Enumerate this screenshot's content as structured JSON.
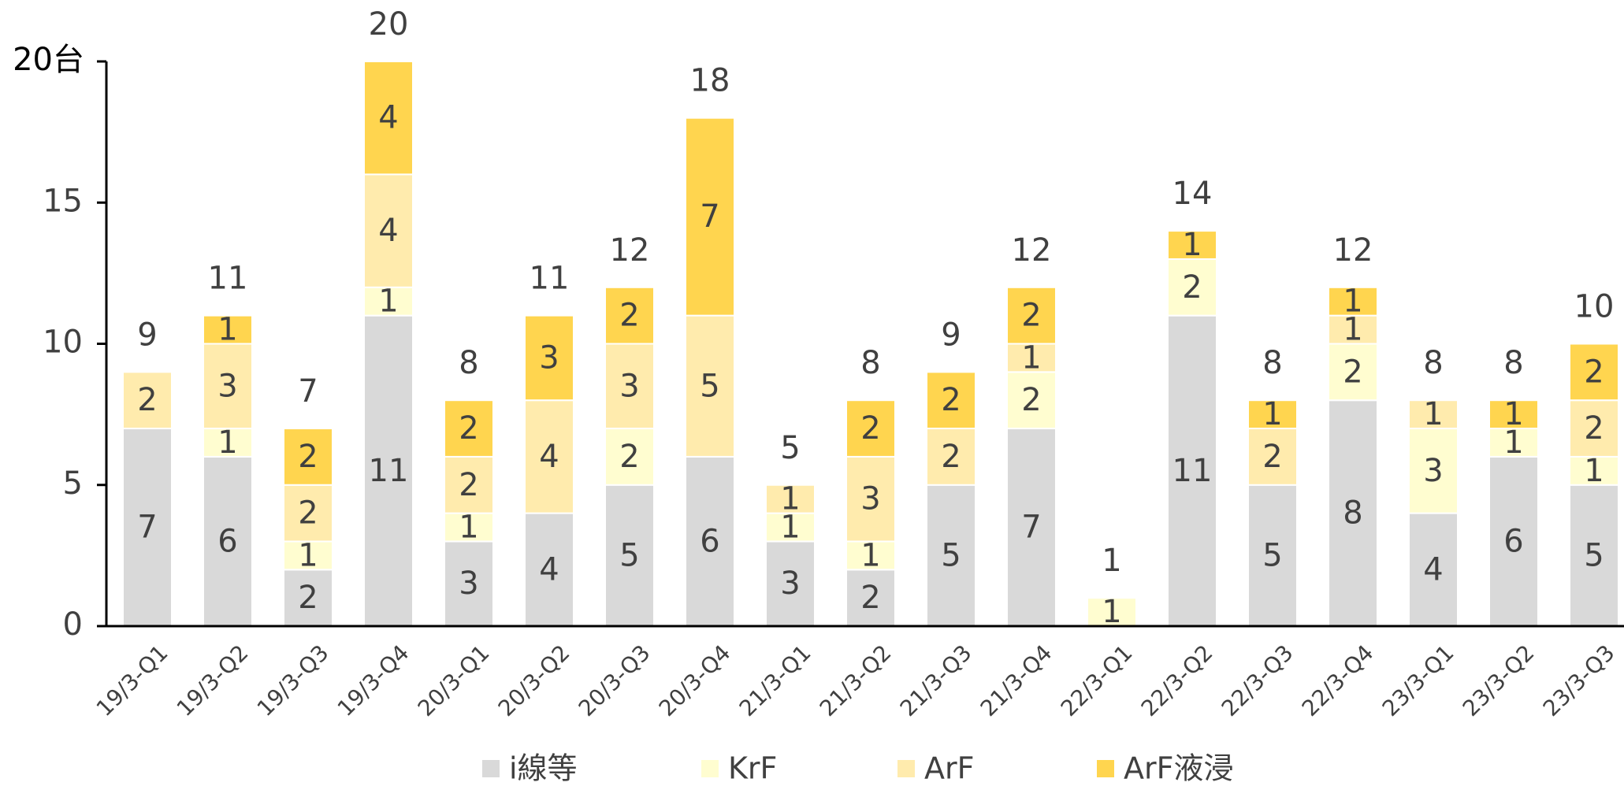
{
  "chart_data": {
    "type": "stacked_bar",
    "categories": [
      "19/3-Q1",
      "19/3-Q2",
      "19/3-Q3",
      "19/3-Q4",
      "20/3-Q1",
      "20/3-Q2",
      "20/3-Q3",
      "20/3-Q4",
      "21/3-Q1",
      "21/3-Q2",
      "21/3-Q3",
      "21/3-Q4",
      "22/3-Q1",
      "22/3-Q2",
      "22/3-Q3",
      "22/3-Q4",
      "23/3-Q1",
      "23/3-Q2",
      "23/3-Q3"
    ],
    "series": [
      {
        "name": "i線等",
        "color": "#d9d9d9",
        "values": [
          7,
          6,
          2,
          11,
          3,
          4,
          5,
          6,
          3,
          2,
          5,
          7,
          null,
          11,
          5,
          8,
          4,
          6,
          5
        ]
      },
      {
        "name": "KrF",
        "color": "#fffdd0",
        "values": [
          null,
          1,
          1,
          1,
          1,
          null,
          2,
          null,
          1,
          1,
          null,
          2,
          1,
          2,
          null,
          2,
          3,
          1,
          1
        ]
      },
      {
        "name": "ArF",
        "color": "#ffebad",
        "values": [
          2,
          3,
          2,
          4,
          2,
          4,
          3,
          5,
          1,
          3,
          2,
          1,
          null,
          null,
          2,
          1,
          1,
          null,
          2
        ]
      },
      {
        "name": "ArF液浸",
        "color": "#ffd54f",
        "values": [
          null,
          1,
          2,
          4,
          2,
          3,
          2,
          7,
          null,
          2,
          2,
          2,
          null,
          1,
          1,
          1,
          null,
          1,
          2
        ]
      }
    ],
    "totals": [
      9,
      11,
      7,
      20,
      8,
      11,
      12,
      18,
      5,
      8,
      9,
      12,
      1,
      14,
      8,
      12,
      8,
      8,
      10
    ],
    "ylim": [
      0,
      20
    ],
    "yticks": [
      0,
      5,
      10,
      15,
      {
        "value": 20,
        "label": "20台"
      }
    ],
    "legend": "bottom"
  }
}
